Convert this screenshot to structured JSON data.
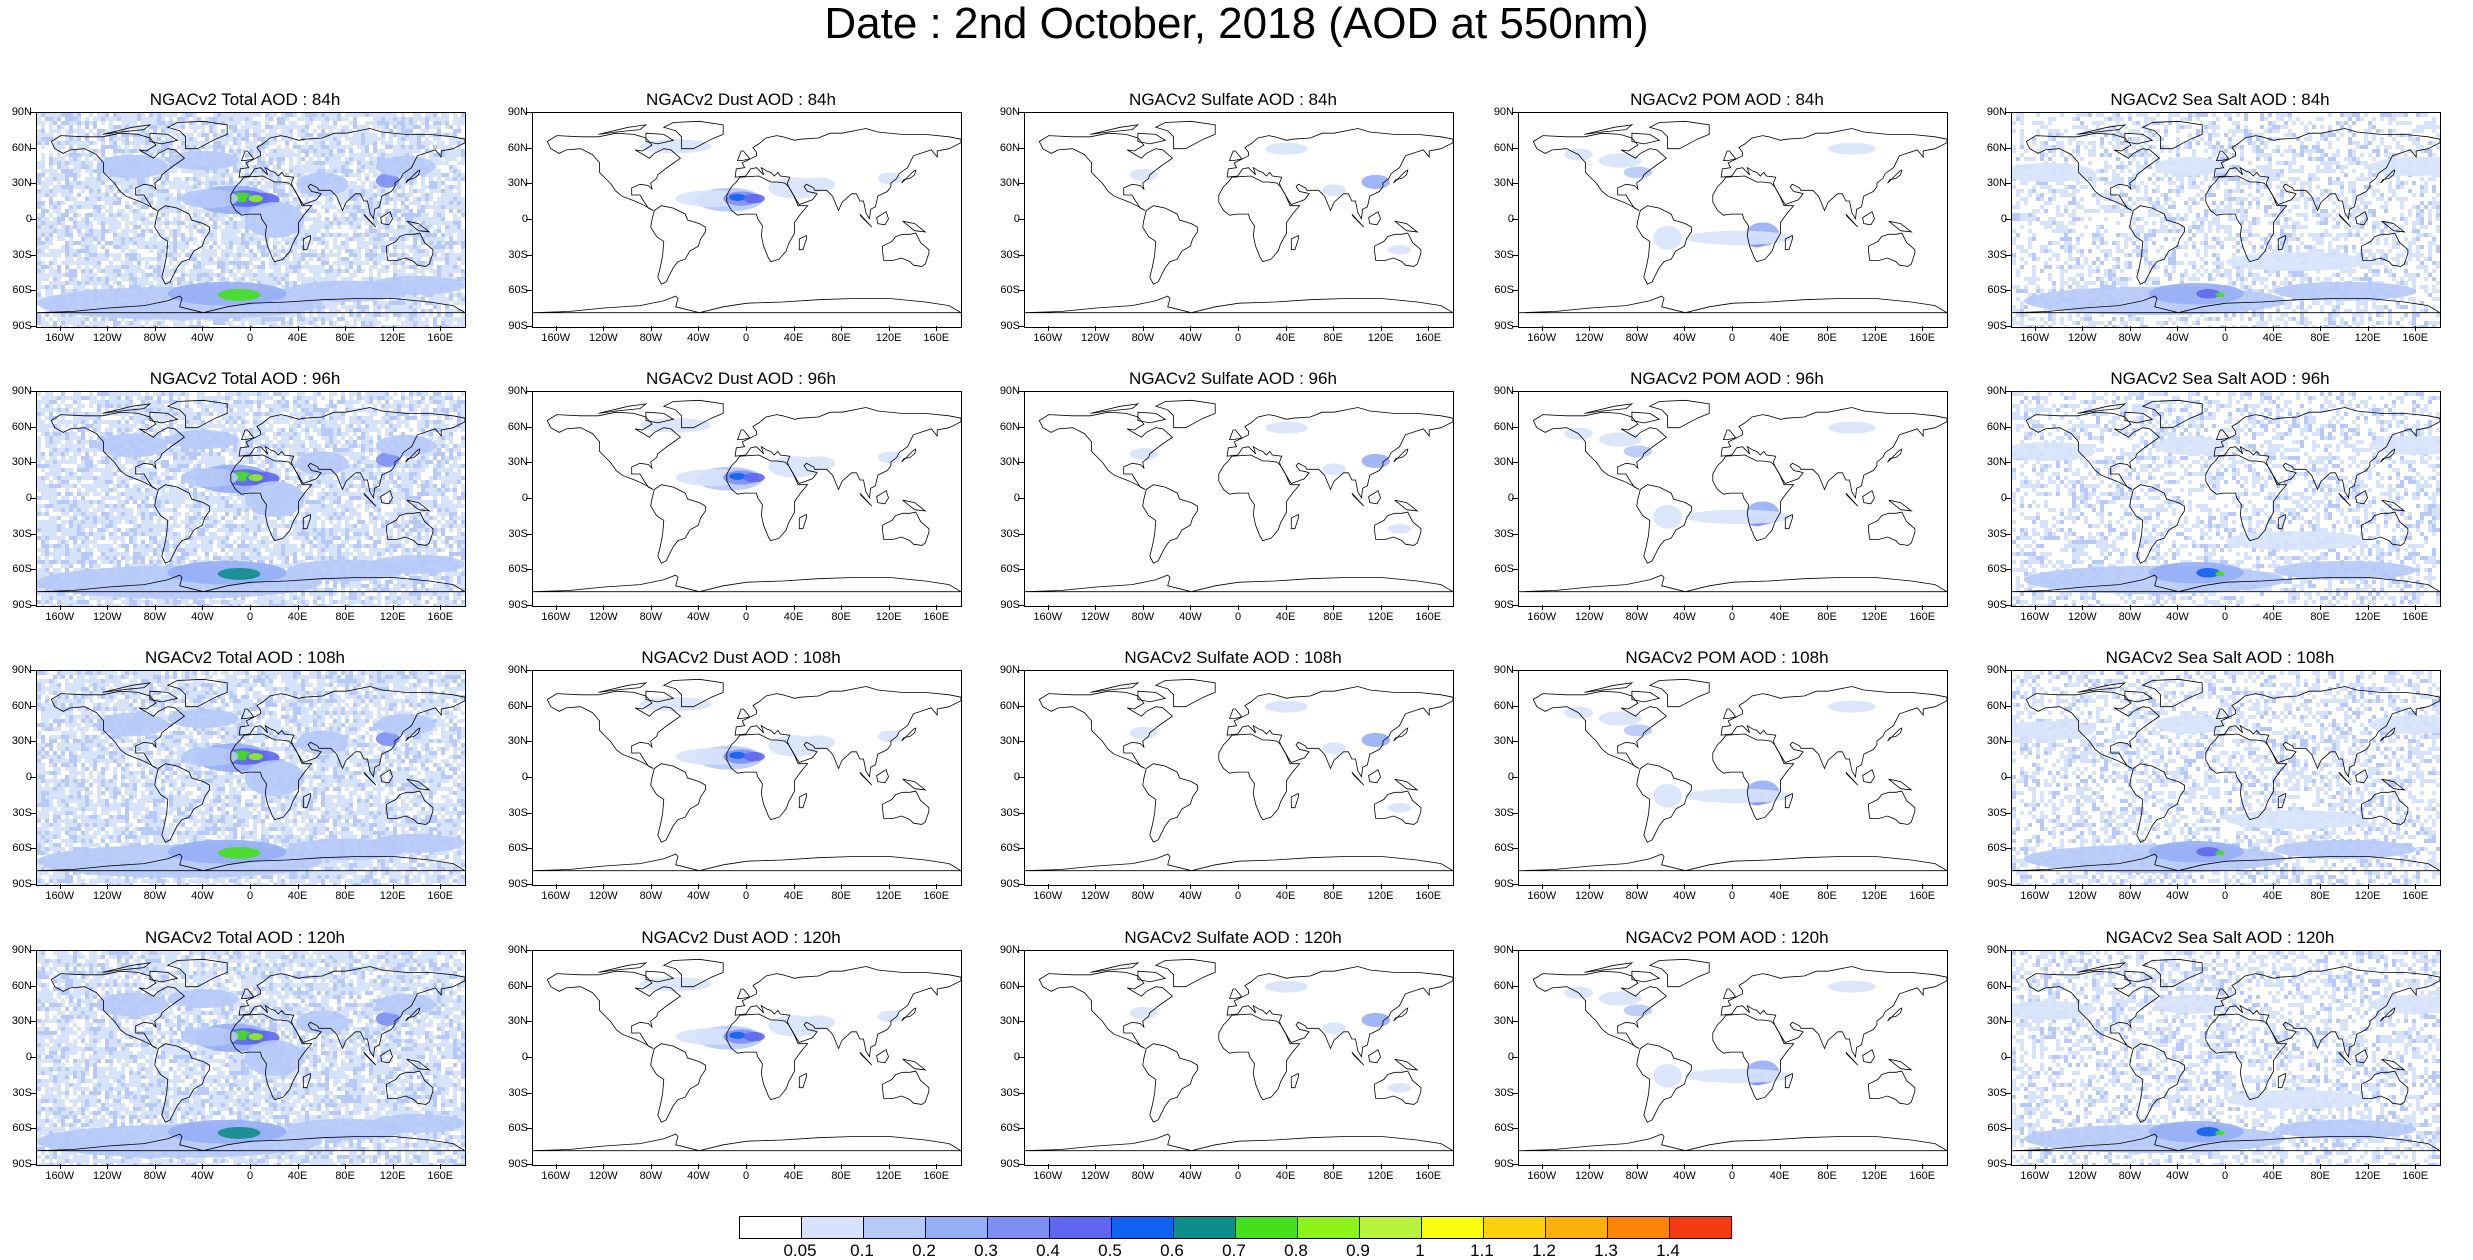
{
  "title": "Date : 2nd October, 2018 (AOD at 550nm)",
  "colors": {
    "land_outline": "#000000",
    "background": "#ffffff"
  },
  "lat_labels": [
    "90N",
    "60N",
    "30N",
    "0",
    "30S",
    "60S",
    "90S"
  ],
  "lon_labels": [
    "160W",
    "120W",
    "80W",
    "40W",
    "0",
    "40E",
    "80E",
    "120E",
    "160E"
  ],
  "panels": [
    {
      "title": "NGACv2 Total AOD : 84h",
      "species": "total",
      "hour": 84
    },
    {
      "title": "NGACv2 Dust AOD : 84h",
      "species": "dust",
      "hour": 84
    },
    {
      "title": "NGACv2 Sulfate AOD : 84h",
      "species": "sulfate",
      "hour": 84
    },
    {
      "title": "NGACv2 POM AOD : 84h",
      "species": "pom",
      "hour": 84
    },
    {
      "title": "NGACv2 Sea Salt AOD : 84h",
      "species": "seasalt",
      "hour": 84
    },
    {
      "title": "NGACv2 Total AOD : 96h",
      "species": "total",
      "hour": 96
    },
    {
      "title": "NGACv2 Dust AOD : 96h",
      "species": "dust",
      "hour": 96
    },
    {
      "title": "NGACv2 Sulfate AOD : 96h",
      "species": "sulfate",
      "hour": 96
    },
    {
      "title": "NGACv2 POM AOD : 96h",
      "species": "pom",
      "hour": 96
    },
    {
      "title": "NGACv2 Sea Salt AOD : 96h",
      "species": "seasalt",
      "hour": 96
    },
    {
      "title": "NGACv2 Total AOD : 108h",
      "species": "total",
      "hour": 108
    },
    {
      "title": "NGACv2 Dust AOD : 108h",
      "species": "dust",
      "hour": 108
    },
    {
      "title": "NGACv2 Sulfate AOD : 108h",
      "species": "sulfate",
      "hour": 108
    },
    {
      "title": "NGACv2 POM AOD : 108h",
      "species": "pom",
      "hour": 108
    },
    {
      "title": "NGACv2 Sea Salt AOD : 108h",
      "species": "seasalt",
      "hour": 108
    },
    {
      "title": "NGACv2 Total AOD : 120h",
      "species": "total",
      "hour": 120
    },
    {
      "title": "NGACv2 Dust AOD : 120h",
      "species": "dust",
      "hour": 120
    },
    {
      "title": "NGACv2 Sulfate AOD : 120h",
      "species": "sulfate",
      "hour": 120
    },
    {
      "title": "NGACv2 POM AOD : 120h",
      "species": "pom",
      "hour": 120
    },
    {
      "title": "NGACv2 Sea Salt  AOD : 120h",
      "species": "seasalt",
      "hour": 120
    }
  ],
  "colorbar": {
    "colors": [
      "#ffffff",
      "#d7e3fb",
      "#b6c9f8",
      "#96aef5",
      "#7d8ff2",
      "#5f67ef",
      "#0f63f0",
      "#0e8d8a",
      "#44e01c",
      "#8ef21b",
      "#b9f23c",
      "#fdfd0f",
      "#fdd20c",
      "#fcb00a",
      "#fb8508",
      "#f53b14"
    ],
    "labels": [
      "0.05",
      "0.1",
      "0.2",
      "0.3",
      "0.4",
      "0.5",
      "0.6",
      "0.7",
      "0.8",
      "0.9",
      "1",
      "1.1",
      "1.2",
      "1.3",
      "1.4"
    ]
  }
}
